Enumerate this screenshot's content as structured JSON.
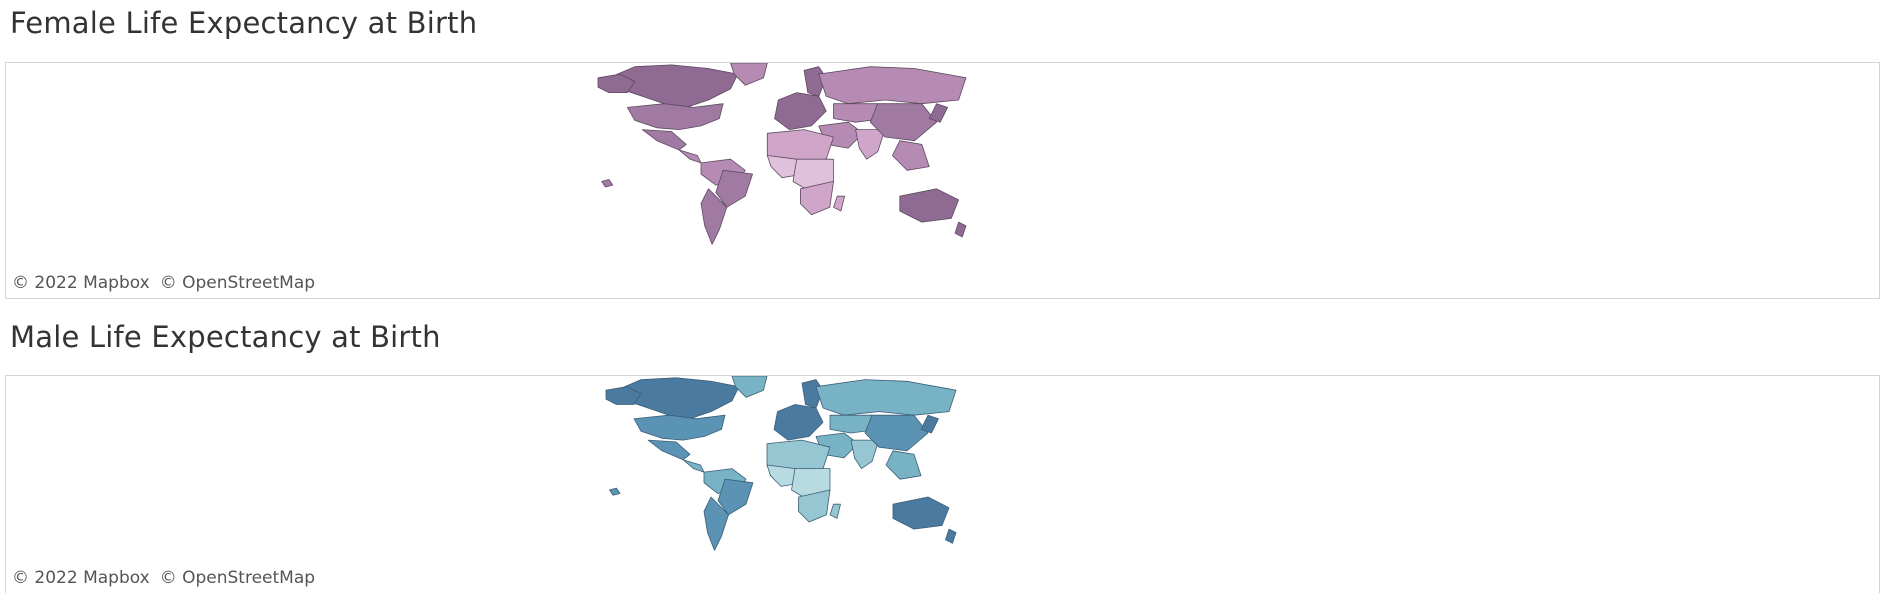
{
  "maps": [
    {
      "title": "Female Life Expectancy at Birth",
      "palette": {
        "high": "#8f6a93",
        "mid_high": "#a07aa3",
        "mid": "#b58bb3",
        "low": "#cfa6ca",
        "lowest": "#e0c1dc",
        "border": "#5e4a60"
      }
    },
    {
      "title": "Male Life Expectancy at Birth",
      "palette": {
        "high": "#4b7aa1",
        "mid_high": "#5a93b3",
        "mid": "#77b3c5",
        "low": "#95c6d1",
        "lowest": "#b7dbe0",
        "border": "#3c5f78"
      }
    }
  ],
  "attribution": {
    "mapbox": "© 2022 Mapbox",
    "osm": "© OpenStreetMap"
  }
}
